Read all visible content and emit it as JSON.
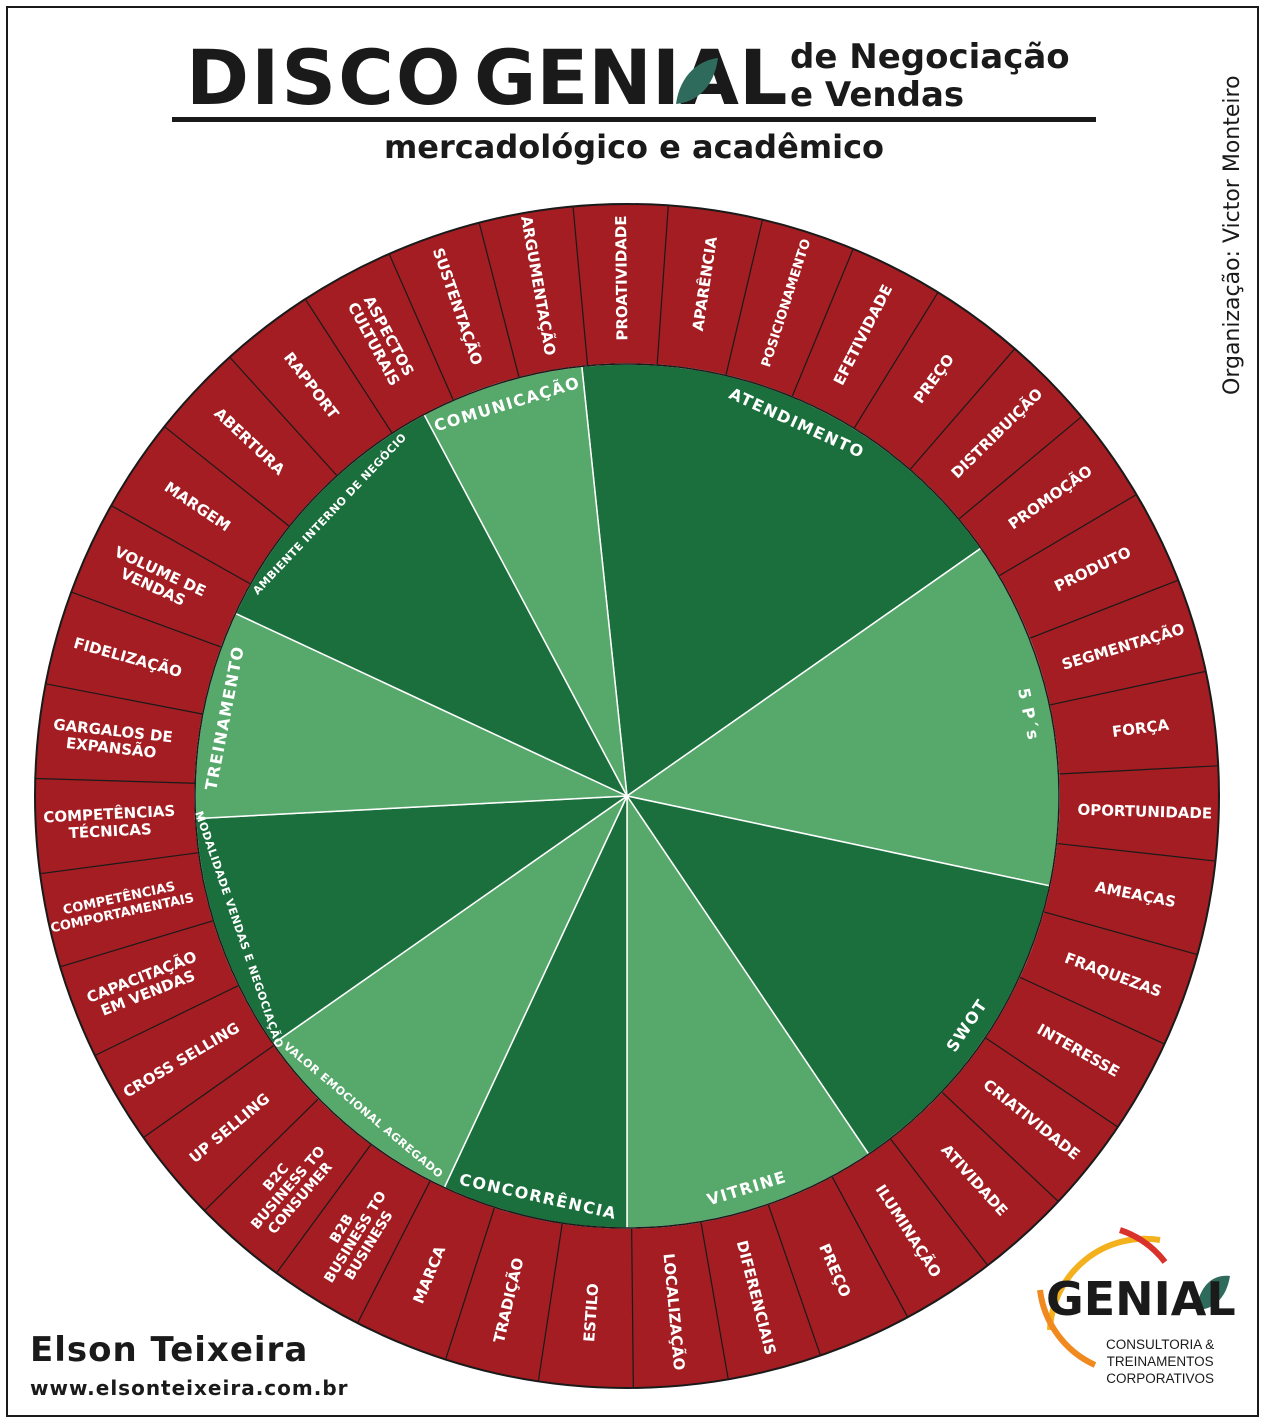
{
  "header": {
    "title_left": "DISCO",
    "title_brand": "GENIAL",
    "title_side_line1": "de Negociação",
    "title_side_line2": "e Vendas",
    "subtitle": "mercadológico e acadêmico",
    "organizer": "Organização: Victor Monteiro"
  },
  "footer": {
    "author": "Elson Teixeira",
    "website": "www.elsonteixeira.com.br"
  },
  "logo": {
    "brand": "GENIAL",
    "line1": "CONSULTORIA &",
    "line2": "TREINAMENTOS",
    "line3": "CORPORATIVOS"
  },
  "colors": {
    "outer_ring": "#a31d22",
    "sector_dark": "#1a6f3c",
    "sector_light": "#56a86b",
    "lines": "#ffffff",
    "text_dark": "#1a1a1a",
    "logo_leaf": "#2f6b5c"
  },
  "disc": {
    "inner_sectors": [
      {
        "label": "ATENDIMENTO",
        "shade": "dark"
      },
      {
        "label": "5 P´s",
        "shade": "light"
      },
      {
        "label": "SWOT",
        "shade": "dark"
      },
      {
        "label": "VITRINE",
        "shade": "light"
      },
      {
        "label": "CONCORRÊNCIA",
        "shade": "dark"
      },
      {
        "label": "VALOR EMOCIONAL AGREGADO",
        "shade": "light"
      },
      {
        "label": "MODALIDADE VENDAS E NEGOCIAÇÃO",
        "shade": "dark"
      },
      {
        "label": "TREINAMENTO",
        "shade": "light"
      },
      {
        "label": "AMBIENTE INTERNO DE NEGÓCIO",
        "shade": "dark"
      },
      {
        "label": "COMUNICAÇÃO",
        "shade": "light"
      }
    ],
    "outer_items": [
      {
        "text": [
          "APARÊNCIA"
        ]
      },
      {
        "text": [
          "POSICIONAMENTO"
        ]
      },
      {
        "text": [
          "EFETIVIDADE"
        ]
      },
      {
        "text": [
          "PREÇO"
        ]
      },
      {
        "text": [
          "DISTRIBUIÇÃO"
        ]
      },
      {
        "text": [
          "PROMOÇÃO"
        ]
      },
      {
        "text": [
          "PRODUTO"
        ]
      },
      {
        "text": [
          "SEGMENTAÇÃO"
        ]
      },
      {
        "text": [
          "FORÇA"
        ]
      },
      {
        "text": [
          "OPORTUNIDADE"
        ]
      },
      {
        "text": [
          "AMEAÇAS"
        ]
      },
      {
        "text": [
          "FRAQUEZAS"
        ]
      },
      {
        "text": [
          "INTERESSE"
        ]
      },
      {
        "text": [
          "CRIATIVIDADE"
        ]
      },
      {
        "text": [
          "ATIVIDADE"
        ]
      },
      {
        "text": [
          "ILUMINAÇÃO"
        ]
      },
      {
        "text": [
          "PREÇO"
        ]
      },
      {
        "text": [
          "DIFERENCIAIS"
        ]
      },
      {
        "text": [
          "LOCALIZAÇÃO"
        ]
      },
      {
        "text": [
          "ESTILO"
        ]
      },
      {
        "text": [
          "TRADIÇÃO"
        ]
      },
      {
        "text": [
          "MARCA"
        ]
      },
      {
        "text": [
          "B2B",
          "BUSINESS TO",
          "BUSINESS"
        ]
      },
      {
        "text": [
          "B2C",
          "BUSINESS TO",
          "CONSUMER"
        ]
      },
      {
        "text": [
          "UP SELLING"
        ]
      },
      {
        "text": [
          "CROSS SELLING"
        ]
      },
      {
        "text": [
          "CAPACITAÇÃO",
          "EM VENDAS"
        ]
      },
      {
        "text": [
          "COMPETÊNCIAS",
          "COMPORTAMENTAIS"
        ]
      },
      {
        "text": [
          "COMPETÊNCIAS",
          "TÉCNICAS"
        ]
      },
      {
        "text": [
          "GARGALOS DE",
          "EXPANSÃO"
        ]
      },
      {
        "text": [
          "FIDELIZAÇÃO"
        ]
      },
      {
        "text": [
          "VOLUME DE",
          "VENDAS"
        ]
      },
      {
        "text": [
          "MARGEM"
        ]
      },
      {
        "text": [
          "ABERTURA"
        ]
      },
      {
        "text": [
          "RAPPORT"
        ]
      },
      {
        "text": [
          "ASPECTOS",
          "CULTURAIS"
        ]
      },
      {
        "text": [
          "SUSTENTAÇÃO"
        ]
      },
      {
        "text": [
          "ARGUMENTAÇÃO"
        ]
      },
      {
        "text": [
          "PROATIVIDADE"
        ]
      }
    ]
  }
}
